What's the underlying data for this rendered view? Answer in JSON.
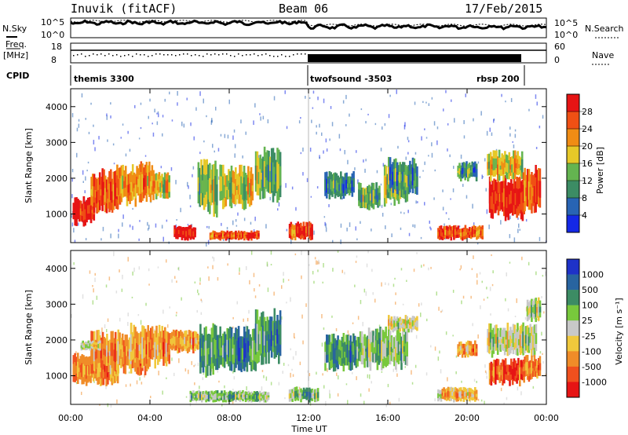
{
  "header": {
    "station": "Inuvik (fitACF)",
    "beam": "Beam 06",
    "date": "17/Feb/2015"
  },
  "noise_panel": {
    "left_label": "N.Sky",
    "right_label": "N.Search",
    "left_ticks": [
      "10^5",
      "10^0"
    ],
    "right_ticks": [
      "10^5",
      "10^0"
    ]
  },
  "freq_panel": {
    "left_label_1": "Freq.",
    "left_label_2": "[MHz]",
    "right_label": "Nave",
    "left_ticks": [
      "18",
      "8"
    ],
    "right_ticks": [
      "60",
      "0"
    ]
  },
  "cpid": {
    "label": "CPID",
    "segments": [
      {
        "name": "themis 3300",
        "start_hour": 0.0
      },
      {
        "name": "twofsound -3503",
        "start_hour": 12.0
      },
      {
        "name": "rbsp 200",
        "start_hour": 23.0
      }
    ],
    "rbsp_label_hour": 21.2
  },
  "power_panel": {
    "ylabel": "Slant Range [km]",
    "y_ticks": [
      "1000",
      "2000",
      "3000",
      "4000"
    ],
    "colorbar_label": "Power [dB]",
    "colorbar_ticks": [
      "4",
      "8",
      "12",
      "16",
      "20",
      "24",
      "28"
    ],
    "colors": [
      "#1428e6",
      "#2864b4",
      "#3c8c64",
      "#64b450",
      "#e6c828",
      "#f08c14",
      "#f05014",
      "#e61414"
    ]
  },
  "velocity_panel": {
    "ylabel": "Slant Range [km]",
    "y_ticks": [
      "1000",
      "2000",
      "3000",
      "4000"
    ],
    "colorbar_label": "Velocity [m s⁻¹]",
    "colorbar_ticks": [
      "1000",
      "500",
      "100",
      "25",
      "-25",
      "-100",
      "-500",
      "-1000"
    ],
    "colors": [
      "#1e32c8",
      "#2864a0",
      "#3c8c64",
      "#78c83c",
      "#c8c8c8",
      "#f0c83c",
      "#f08c28",
      "#f0501e",
      "#e61414"
    ]
  },
  "xaxis": {
    "label": "Time UT",
    "ticks": [
      "00:00",
      "04:00",
      "08:00",
      "12:00",
      "16:00",
      "20:00",
      "00:00"
    ]
  },
  "chart_data": {
    "type": "heatmap",
    "title": "Inuvik (fitACF)  Beam 06  17/Feb/2015",
    "xlabel": "Time UT",
    "ylabel": "Slant Range [km]",
    "xlim_hours": [
      0,
      24
    ],
    "ylim_km": [
      200,
      4500
    ],
    "power_range_db": [
      0,
      32
    ],
    "velocity_range_ms": [
      -1500,
      1500
    ],
    "power_regions": [
      {
        "t0": 0.1,
        "t1": 1.2,
        "r0": 650,
        "r1": 1500,
        "level": 7
      },
      {
        "t0": 1.0,
        "t1": 2.4,
        "r0": 900,
        "r1": 2300,
        "level": 6
      },
      {
        "t0": 2.3,
        "t1": 3.3,
        "r0": 1200,
        "r1": 2400,
        "level": 5
      },
      {
        "t0": 3.3,
        "t1": 4.2,
        "r0": 1300,
        "r1": 2500,
        "level": 5
      },
      {
        "t0": 4.2,
        "t1": 5.0,
        "r0": 1400,
        "r1": 2200,
        "level": 4
      },
      {
        "t0": 5.2,
        "t1": 6.3,
        "r0": 250,
        "r1": 700,
        "level": 7
      },
      {
        "t0": 6.4,
        "t1": 7.4,
        "r0": 900,
        "r1": 2600,
        "level": 3
      },
      {
        "t0": 7.5,
        "t1": 9.2,
        "r0": 1100,
        "r1": 2400,
        "level": 4
      },
      {
        "t0": 9.3,
        "t1": 10.6,
        "r0": 1300,
        "r1": 2900,
        "level": 3
      },
      {
        "t0": 7.0,
        "t1": 9.5,
        "r0": 250,
        "r1": 550,
        "level": 6
      },
      {
        "t0": 11.0,
        "t1": 12.2,
        "r0": 250,
        "r1": 800,
        "level": 6
      },
      {
        "t0": 12.8,
        "t1": 14.3,
        "r0": 1400,
        "r1": 2200,
        "level": 2
      },
      {
        "t0": 14.5,
        "t1": 15.6,
        "r0": 1100,
        "r1": 1900,
        "level": 3
      },
      {
        "t0": 15.8,
        "t1": 17.0,
        "r0": 1200,
        "r1": 2400,
        "level": 3
      },
      {
        "t0": 16.0,
        "t1": 17.5,
        "r0": 1500,
        "r1": 2600,
        "level": 2
      },
      {
        "t0": 18.5,
        "t1": 20.8,
        "r0": 250,
        "r1": 700,
        "level": 6
      },
      {
        "t0": 19.5,
        "t1": 20.5,
        "r0": 1900,
        "r1": 2500,
        "level": 2
      },
      {
        "t0": 21.1,
        "t1": 22.9,
        "r0": 800,
        "r1": 2100,
        "level": 7
      },
      {
        "t0": 21.0,
        "t1": 22.8,
        "r0": 1900,
        "r1": 2800,
        "level": 4
      },
      {
        "t0": 22.8,
        "t1": 23.7,
        "r0": 1000,
        "r1": 2400,
        "level": 6
      }
    ],
    "velocity_regions": [
      {
        "t0": 0.1,
        "t1": 2.4,
        "r0": 700,
        "r1": 1700,
        "level": 6
      },
      {
        "t0": 1.0,
        "t1": 4.0,
        "r0": 1000,
        "r1": 2300,
        "level": 6
      },
      {
        "t0": 3.0,
        "t1": 5.0,
        "r0": 1200,
        "r1": 2500,
        "level": 6
      },
      {
        "t0": 0.5,
        "t1": 1.5,
        "r0": 1700,
        "r1": 2000,
        "level": 4
      },
      {
        "t0": 5.0,
        "t1": 6.5,
        "r0": 1600,
        "r1": 2300,
        "level": 6
      },
      {
        "t0": 6.5,
        "t1": 7.5,
        "r0": 900,
        "r1": 2500,
        "level": 2
      },
      {
        "t0": 7.5,
        "t1": 9.5,
        "r0": 1100,
        "r1": 2400,
        "level": 2
      },
      {
        "t0": 9.3,
        "t1": 10.6,
        "r0": 1300,
        "r1": 2900,
        "level": 2
      },
      {
        "t0": 6.0,
        "t1": 10.0,
        "r0": 250,
        "r1": 600,
        "level": 3
      },
      {
        "t0": 11.0,
        "t1": 12.5,
        "r0": 250,
        "r1": 700,
        "level": 3
      },
      {
        "t0": 12.8,
        "t1": 14.5,
        "r0": 1100,
        "r1": 2200,
        "level": 2
      },
      {
        "t0": 14.5,
        "t1": 17.0,
        "r0": 1100,
        "r1": 2400,
        "level": 3
      },
      {
        "t0": 16.0,
        "t1": 17.5,
        "r0": 2200,
        "r1": 2700,
        "level": 4
      },
      {
        "t0": 18.5,
        "t1": 20.5,
        "r0": 250,
        "r1": 700,
        "level": 5
      },
      {
        "t0": 19.5,
        "t1": 20.5,
        "r0": 1500,
        "r1": 2000,
        "level": 6
      },
      {
        "t0": 21.1,
        "t1": 22.9,
        "r0": 700,
        "r1": 1500,
        "level": 7
      },
      {
        "t0": 21.0,
        "t1": 23.5,
        "r0": 1500,
        "r1": 2500,
        "level": 4
      },
      {
        "t0": 22.8,
        "t1": 23.7,
        "r0": 800,
        "r1": 1600,
        "level": 6
      },
      {
        "t0": 23.0,
        "t1": 23.7,
        "r0": 2500,
        "r1": 3200,
        "level": 4
      }
    ]
  }
}
